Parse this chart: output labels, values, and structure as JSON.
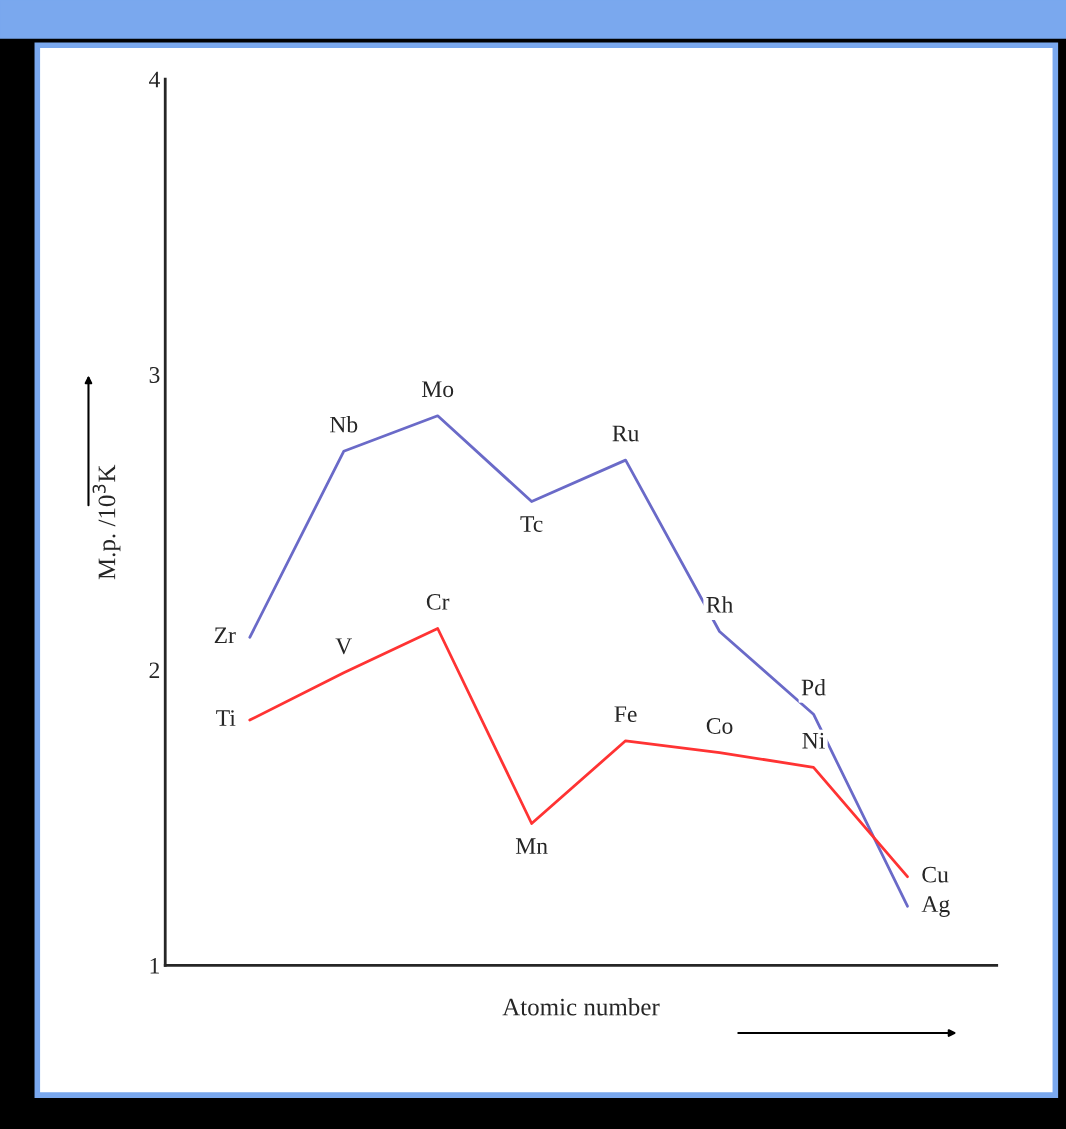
{
  "chart_data": {
    "type": "line",
    "xlabel": "Atomic number",
    "ylabel": "M.p. /10$^{3}$K",
    "categories": [
      null,
      null,
      null,
      null,
      null,
      null,
      null,
      null
    ],
    "series": [
      {
        "color": "#6a6ac8",
        "values": [
          2.11,
          2.74,
          2.86,
          2.57,
          2.71,
          2.13,
          1.85,
          1.2
        ],
        "value_labels": [
          "Zr",
          "Nb",
          "Mo",
          "Tc",
          "Ru",
          "Rh",
          "Pd",
          "Ag"
        ]
      },
      {
        "color": "#ff3333",
        "values": [
          1.83,
          1.99,
          2.14,
          1.48,
          1.76,
          1.72,
          1.67,
          1.3
        ],
        "value_labels": [
          "Ti",
          "V",
          "Cr",
          "Mn",
          "Fe",
          "Co",
          "Ni",
          "Cu"
        ]
      }
    ],
    "ylim": [
      1,
      4
    ],
    "yticks": [
      1,
      2,
      3,
      4
    ],
    "grid": false,
    "legend": false,
    "marker": "none",
    "line_style": "solid"
  }
}
